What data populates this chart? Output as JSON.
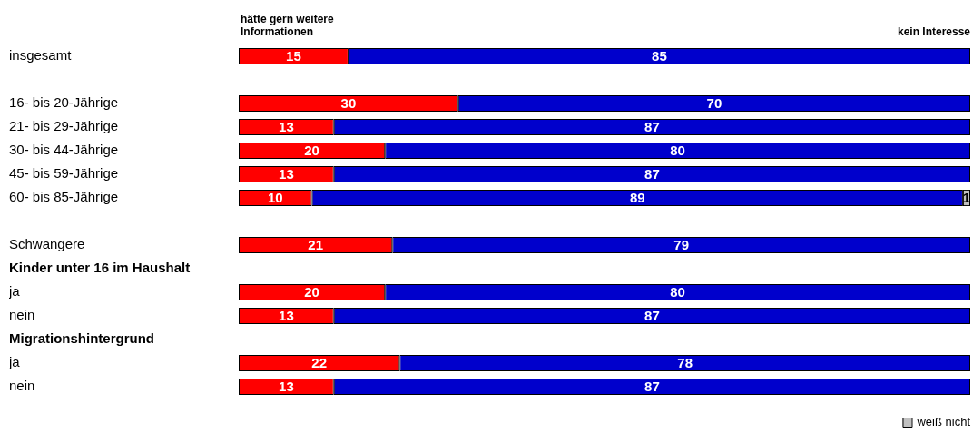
{
  "chart_data": {
    "type": "bar",
    "orientation": "horizontal",
    "stacked": true,
    "data_labels": true,
    "legend": "bottom right",
    "tick_labels": "y",
    "xlim": [
      0,
      100
    ],
    "categories": [
      "insgesamt",
      null,
      "16- bis 20-Jährige",
      "21- bis 29-Jährige",
      "30- bis 44-Jährige",
      "45- bis 59-Jährige",
      "60- bis 85-Jährige",
      null,
      "Schwangere",
      "Kinder unter 16 im Haushalt",
      "ja",
      "nein",
      "Migrationshintergrund",
      "ja",
      "nein"
    ],
    "series": [
      {
        "name": "hätte gern weitere Informationen",
        "color": "#ff0000",
        "values": [
          15,
          null,
          30,
          13,
          20,
          13,
          10,
          null,
          21,
          null,
          20,
          13,
          null,
          22,
          13
        ]
      },
      {
        "name": "kein Interesse",
        "color": "#0000cc",
        "values": [
          85,
          null,
          70,
          87,
          80,
          87,
          89,
          null,
          79,
          null,
          80,
          87,
          null,
          78,
          87
        ]
      },
      {
        "name": "weiß nicht",
        "color": "#c0c0c0",
        "values": [
          null,
          null,
          null,
          null,
          null,
          null,
          1,
          null,
          null,
          null,
          null,
          null,
          null,
          null,
          null
        ]
      }
    ]
  }
}
